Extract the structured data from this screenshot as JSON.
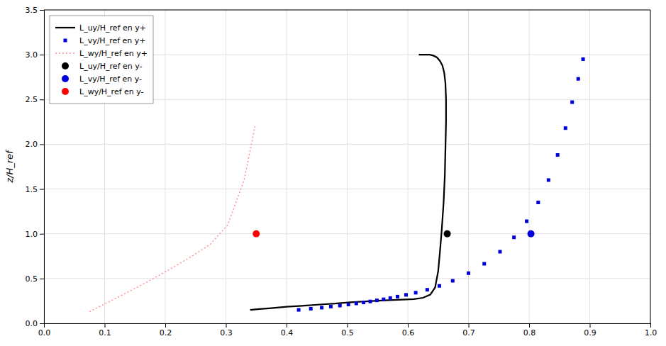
{
  "chart_data": {
    "type": "line",
    "ylabel": "z/H_ref",
    "xlim": [
      0,
      1
    ],
    "ylim": [
      0,
      3.5
    ],
    "xticks": [
      {
        "value": 0,
        "label": "0.0"
      },
      0.1,
      0.2,
      0.3,
      0.4,
      0.5,
      0.6,
      0.7,
      0.8,
      0.9,
      {
        "value": 1,
        "label": "1.0"
      }
    ],
    "yticks": [
      {
        "value": 0,
        "label": "0.0"
      },
      0.5,
      {
        "value": 1,
        "label": "1.0"
      },
      1.5,
      {
        "value": 2,
        "label": "2.0"
      },
      2.5,
      {
        "value": 3,
        "label": "3.0"
      },
      3.5
    ],
    "grid": true,
    "legend": "upper left",
    "series": [
      {
        "name": "L_uy/H_ref en y+",
        "type": "line",
        "line_style": "solid",
        "color": "#000000",
        "x": [
          0.34,
          0.355,
          0.375,
          0.4,
          0.425,
          0.455,
          0.48,
          0.505,
          0.53,
          0.55,
          0.57,
          0.59,
          0.61,
          0.625,
          0.637,
          0.645,
          0.65,
          0.653,
          0.656,
          0.659,
          0.661,
          0.662,
          0.663,
          0.663,
          0.662,
          0.66,
          0.657,
          0.653,
          0.648,
          0.642,
          0.636,
          0.63,
          0.624,
          0.62,
          0.618
        ],
        "values": [
          0.15,
          0.16,
          0.17,
          0.185,
          0.195,
          0.21,
          0.22,
          0.235,
          0.245,
          0.252,
          0.258,
          0.264,
          0.27,
          0.285,
          0.32,
          0.4,
          0.58,
          0.8,
          1.05,
          1.35,
          1.65,
          1.95,
          2.25,
          2.5,
          2.68,
          2.8,
          2.88,
          2.93,
          2.97,
          2.99,
          3.0,
          3.0,
          3.0,
          3.0,
          3.0
        ]
      },
      {
        "name": "L_vy/H_ref en y+",
        "type": "scatter",
        "marker": "square",
        "color": "#0000dd",
        "x": [
          0.42,
          0.44,
          0.458,
          0.473,
          0.488,
          0.502,
          0.515,
          0.527,
          0.538,
          0.549,
          0.56,
          0.571,
          0.583,
          0.597,
          0.613,
          0.632,
          0.652,
          0.674,
          0.7,
          0.726,
          0.752,
          0.775,
          0.796,
          0.815,
          0.832,
          0.847,
          0.86,
          0.871,
          0.881,
          0.889
        ],
        "values": [
          0.15,
          0.163,
          0.175,
          0.187,
          0.198,
          0.21,
          0.222,
          0.233,
          0.244,
          0.256,
          0.268,
          0.282,
          0.298,
          0.318,
          0.342,
          0.375,
          0.418,
          0.475,
          0.56,
          0.665,
          0.8,
          0.96,
          1.14,
          1.35,
          1.6,
          1.88,
          2.18,
          2.47,
          2.73,
          2.95
        ]
      },
      {
        "name": "L_wy/H_ref en y+",
        "type": "line",
        "line_style": "dotted",
        "color": "#ff9090",
        "x": [
          0.075,
          0.085,
          0.097,
          0.113,
          0.133,
          0.157,
          0.183,
          0.213,
          0.244,
          0.274,
          0.303,
          0.33,
          0.348
        ],
        "values": [
          0.13,
          0.165,
          0.205,
          0.26,
          0.33,
          0.415,
          0.51,
          0.625,
          0.75,
          0.88,
          1.1,
          1.6,
          2.2
        ]
      },
      {
        "name": "L_uy/H_ref en y-",
        "type": "scatter",
        "marker": "circle",
        "color": "#000000",
        "x": [
          0.665
        ],
        "values": [
          1.0
        ]
      },
      {
        "name": "L_vy/H_ref en y-",
        "type": "scatter",
        "marker": "circle",
        "color": "#0000dd",
        "x": [
          0.803
        ],
        "values": [
          1.0
        ]
      },
      {
        "name": "L_wy/H_ref en y-",
        "type": "scatter",
        "marker": "circle",
        "color": "#ff0000",
        "x": [
          0.35
        ],
        "values": [
          1.0
        ]
      }
    ]
  }
}
